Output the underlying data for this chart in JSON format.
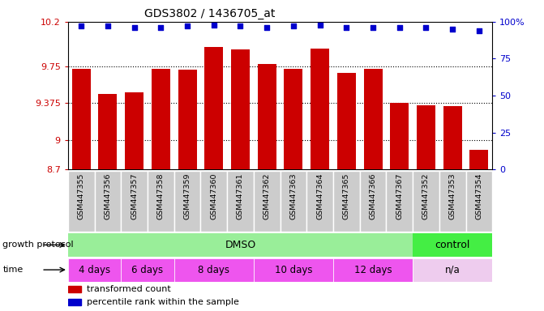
{
  "title": "GDS3802 / 1436705_at",
  "samples": [
    "GSM447355",
    "GSM447356",
    "GSM447357",
    "GSM447358",
    "GSM447359",
    "GSM447360",
    "GSM447361",
    "GSM447362",
    "GSM447363",
    "GSM447364",
    "GSM447365",
    "GSM447366",
    "GSM447367",
    "GSM447352",
    "GSM447353",
    "GSM447354"
  ],
  "bar_values": [
    9.72,
    9.47,
    9.48,
    9.72,
    9.71,
    9.94,
    9.92,
    9.77,
    9.72,
    9.93,
    9.68,
    9.72,
    9.375,
    9.35,
    9.34,
    8.9
  ],
  "percentile_values": [
    97,
    97,
    96,
    96,
    97,
    98,
    97,
    96,
    97,
    98,
    96,
    96,
    96,
    96,
    95,
    94
  ],
  "ylim_left": [
    8.7,
    10.2
  ],
  "ylim_right": [
    0,
    100
  ],
  "yticks_left": [
    8.7,
    9.0,
    9.375,
    9.75,
    10.2
  ],
  "ytick_labels_left": [
    "8.7",
    "9",
    "9.375",
    "9.75",
    "10.2"
  ],
  "yticks_right": [
    0,
    25,
    50,
    75,
    100
  ],
  "ytick_labels_right": [
    "0",
    "25",
    "50",
    "75",
    "100%"
  ],
  "bar_color": "#cc0000",
  "dot_color": "#0000cc",
  "bar_bottom": 8.7,
  "dmso_color": "#99ee99",
  "control_color": "#44ee44",
  "time_pink_color": "#ee55ee",
  "time_lavender_color": "#eeccee",
  "growth_protocol_label": "growth protocol",
  "time_label": "time",
  "legend_bar_label": "transformed count",
  "legend_dot_label": "percentile rank within the sample",
  "tick_color_left": "#cc0000",
  "tick_color_right": "#0000cc",
  "label_row_bg": "#cccccc"
}
